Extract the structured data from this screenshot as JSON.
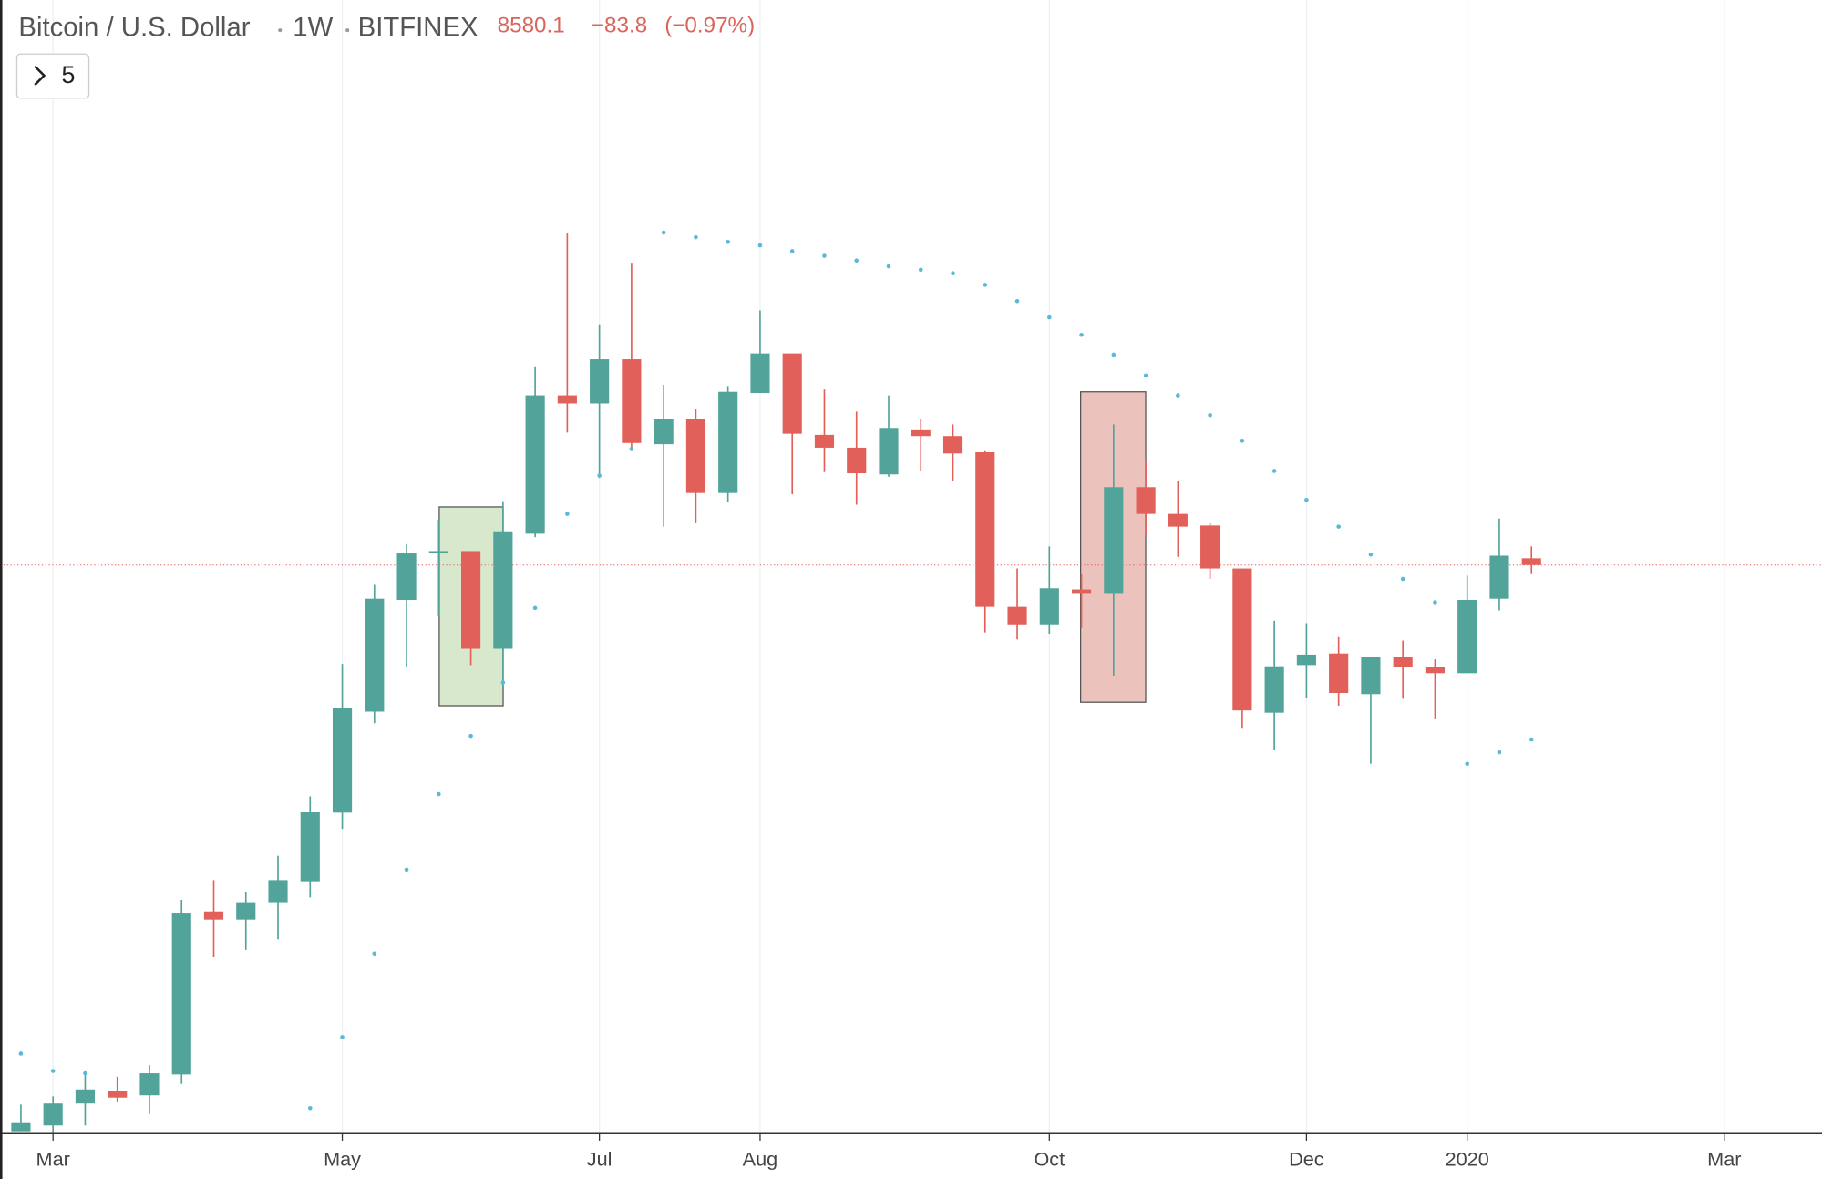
{
  "chart_data": {
    "type": "candlestick",
    "title": "Bitcoin / U.S. Dollar",
    "interval": "1W",
    "exchange": "BITFINEX",
    "change": "−83.8",
    "change_percent": "(−0.97%)",
    "indicator_count": 5,
    "categories": [
      null,
      null,
      null,
      null,
      null,
      null,
      null,
      null,
      null,
      null,
      null,
      null,
      null,
      null,
      null,
      null,
      null,
      null,
      null,
      null,
      null,
      null,
      null,
      null,
      null,
      null,
      null,
      null,
      null,
      null,
      null,
      null,
      null,
      null,
      null,
      null,
      null,
      null,
      null,
      null,
      null,
      null,
      null,
      null,
      null,
      null,
      null,
      null
    ],
    "open": [
      3783,
      3815,
      3938,
      4012,
      3985,
      4107,
      5198,
      5137,
      5268,
      5430,
      5997,
      6941,
      8158,
      8725,
      8755,
      7602,
      8978,
      10968,
      10840,
      11555,
      10220,
      10605,
      9523,
      11005,
      11653,
      10359,
      10169,
      9783,
      10428,
      10341,
      10101,
      8076,
      7875,
      8282,
      8240,
      9604,
      9239,
      9085,
      8537,
      6930,
      7425,
      7550,
      7119,
      7513,
      7400,
      7338,
      8172,
      8664
    ],
    "high": [
      3932,
      3979,
      4121,
      4094,
      4163,
      5286,
      5439,
      5349,
      5634,
      6140,
      7437,
      8338,
      8844,
      9162,
      8755,
      9411,
      11439,
      13880,
      12153,
      13287,
      11136,
      10749,
      11116,
      12401,
      11653,
      11061,
      10713,
      10968,
      10605,
      10517,
      10118,
      8537,
      8814,
      8465,
      10517,
      9966,
      9684,
      9115,
      8537,
      7915,
      7888,
      7731,
      7513,
      7692,
      7488,
      8451,
      9177,
      8814
    ],
    "low": [
      3783,
      3770,
      3815,
      3945,
      3879,
      4052,
      4868,
      4917,
      4993,
      5304,
      5858,
      6826,
      7400,
      7968,
      7425,
      7203,
      8934,
      10393,
      9733,
      10118,
      9070,
      9115,
      9396,
      11005,
      9507,
      9816,
      9364,
      9750,
      9832,
      9684,
      7783,
      7705,
      7770,
      7835,
      7313,
      8964,
      8681,
      8409,
      6780,
      6567,
      7084,
      7001,
      6436,
      7071,
      6872,
      7338,
      8035,
      8480
    ],
    "close": [
      3828,
      3938,
      4019,
      3972,
      4114,
      5189,
      5137,
      5268,
      5439,
      6007,
      6977,
      8172,
      8725,
      8755,
      7602,
      9009,
      10968,
      10840,
      11555,
      10238,
      10605,
      9523,
      11024,
      11653,
      10376,
      10169,
      9799,
      10464,
      10341,
      10084,
      8076,
      7875,
      8296,
      8240,
      9604,
      9239,
      9070,
      8537,
      6953,
      7412,
      7538,
      7131,
      7513,
      7400,
      7338,
      8158,
      8697,
      8580.1
    ],
    "sar": [
      4233,
      4128,
      4114,
      null,
      null,
      null,
      null,
      null,
      null,
      3912,
      4335,
      4892,
      5522,
      6160,
      6701,
      7240,
      8063,
      9239,
      9767,
      10152,
      13880,
      13787,
      13694,
      13625,
      13511,
      13421,
      13330,
      13219,
      13153,
      13086,
      12868,
      12569,
      12277,
      11970,
      11633,
      11286,
      10968,
      10659,
      10272,
      9832,
      9428,
      9070,
      8711,
      8409,
      8131,
      6436,
      6545,
      6667
    ],
    "up_color": "#52a49a",
    "down_color": "#e2605a",
    "sar_color": "#5ab8d8",
    "log_scale": true,
    "ylim": [
      3770,
      19430
    ],
    "xlim": [
      -0.65,
      56.04
    ],
    "xticks": [
      {
        "value": 1,
        "label": "Mar"
      },
      {
        "value": 10,
        "label": "May"
      },
      {
        "value": 18,
        "label": "Jul"
      },
      {
        "value": 23,
        "label": "Aug"
      },
      {
        "value": 32,
        "label": "Oct"
      },
      {
        "value": 40,
        "label": "Dec"
      },
      {
        "value": 45,
        "label": "2020"
      },
      {
        "value": 53,
        "label": "Mar"
      }
    ],
    "grid": true
  }
}
